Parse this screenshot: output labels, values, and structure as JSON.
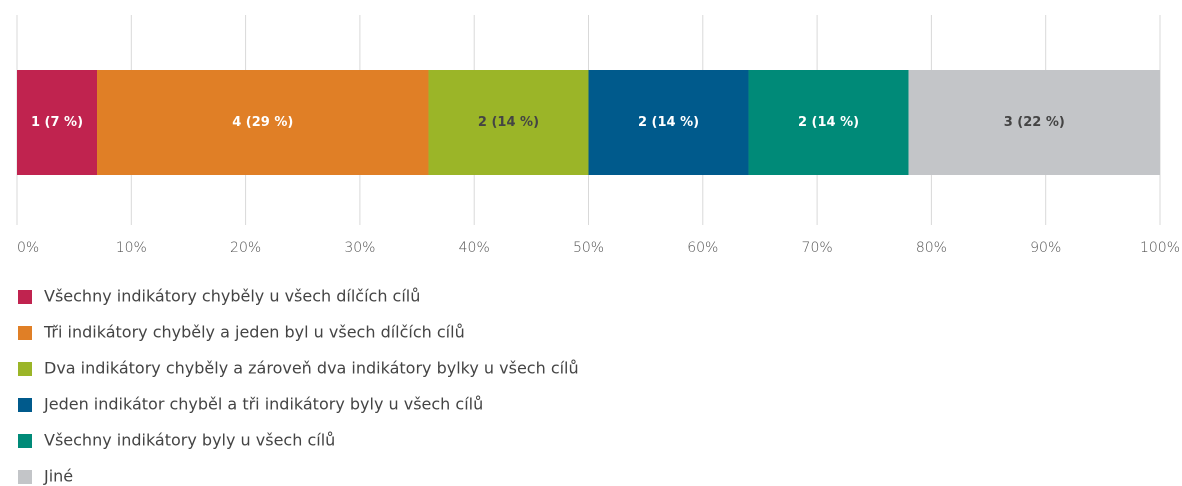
{
  "chart_data": {
    "type": "stacked_barh",
    "categories": [
      null
    ],
    "series": [
      {
        "name": "Všechny indikátory chyběly u všech dílčích cílů",
        "color": "#c0234f",
        "values": [
          7
        ],
        "value_labels": [
          "1 (7 %)"
        ]
      },
      {
        "name": "Tři indikátory chyběly a jeden byl u všech dílčích cílů",
        "color": "#e07f26",
        "values": [
          29
        ],
        "value_labels": [
          "4 (29 %)"
        ]
      },
      {
        "name": "Dva indikátory chyběly a zároveň dva indikátory bylky u všech cílů",
        "color": "#9bb528",
        "values": [
          14
        ],
        "value_labels": [
          "2 (14 %)"
        ]
      },
      {
        "name": "Jeden indikátor chyběl a tři indikátory byly u všech cílů",
        "color": "#005a8c",
        "values": [
          14
        ],
        "value_labels": [
          "2 (14 %)"
        ]
      },
      {
        "name": "Všechny indikátory byly u všech cílů",
        "color": "#008a78",
        "values": [
          14
        ],
        "value_labels": [
          "2 (14 %)"
        ]
      },
      {
        "name": "Jiné",
        "color": "#c3c5c8",
        "values": [
          22
        ],
        "value_labels": [
          "3 (22 %)"
        ]
      }
    ],
    "xlim": [
      0,
      100
    ],
    "xticks": [
      {
        "value": 0,
        "label": "0%"
      },
      {
        "value": 10,
        "label": "10%"
      },
      {
        "value": 20,
        "label": "20%"
      },
      {
        "value": 30,
        "label": "30%"
      },
      {
        "value": 40,
        "label": "40%"
      },
      {
        "value": 50,
        "label": "50%"
      },
      {
        "value": 60,
        "label": "60%"
      },
      {
        "value": 70,
        "label": "70%"
      },
      {
        "value": 80,
        "label": "80%"
      },
      {
        "value": 90,
        "label": "90%"
      },
      {
        "value": 100,
        "label": "100%"
      }
    ],
    "grid": true
  }
}
